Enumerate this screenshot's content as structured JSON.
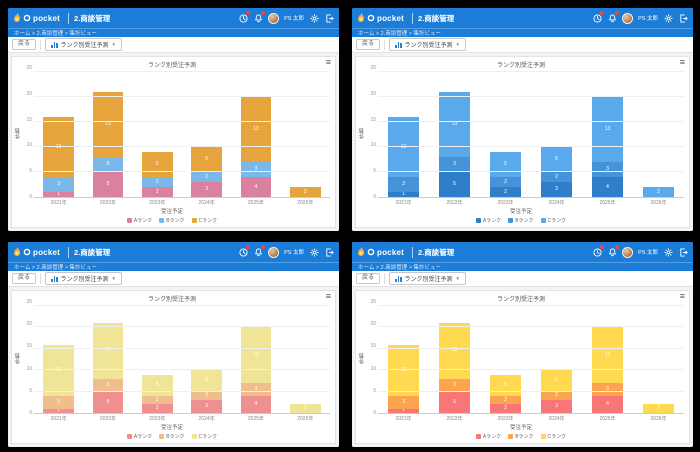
{
  "window": {
    "brand": "pocket",
    "header_title": "2.商談管理",
    "breadcrumb": "ホーム > 2.商談管理 > 集計ビュー",
    "user_name": "PS 太郎",
    "toolbar": {
      "back_button": "戻る",
      "view_select": "ランク別受注予測"
    },
    "chart_menu_glyph": "≡",
    "select_caret_glyph": "▼"
  },
  "chart_data": {
    "type": "bar",
    "stacked": true,
    "title": "ランク別受注予測",
    "categories": [
      "2021年",
      "2022年",
      "2023年",
      "2024年",
      "2025年",
      "2026年"
    ],
    "series": [
      {
        "name": "Aランク",
        "values": [
          1,
          5,
          2,
          3,
          4,
          0
        ]
      },
      {
        "name": "Bランク",
        "values": [
          3,
          3,
          2,
          2,
          3,
          0
        ]
      },
      {
        "name": "Cランク",
        "values": [
          12,
          13,
          5,
          5,
          13,
          2
        ]
      }
    ],
    "totals": [
      16,
      21,
      9,
      10,
      20,
      2
    ],
    "xlabel": "受注予定",
    "ylabel": "件数",
    "ylim": [
      0,
      25
    ],
    "ytick_step": 5,
    "grid": true,
    "legend_position": "bottom",
    "bar_value_labels": true
  },
  "themes": [
    {
      "name": "pink-blue-orange",
      "colors": [
        "#d9819f",
        "#79b8e9",
        "#e6a43c"
      ]
    },
    {
      "name": "blue-shades",
      "colors": [
        "#2f7ec9",
        "#4693d9",
        "#5aa9ec"
      ]
    },
    {
      "name": "pastel-warm",
      "colors": [
        "#ef8f8f",
        "#f2bd8c",
        "#f0e596"
      ]
    },
    {
      "name": "bright-warm",
      "colors": [
        "#f97676",
        "#fca551",
        "#ffd950"
      ]
    }
  ],
  "ui_colors": {
    "header_blue": "#1b7dd8",
    "badge_red": "#f5453a",
    "toolbar_icon_blue": "#2a7fd0",
    "page_background": "#000000"
  }
}
